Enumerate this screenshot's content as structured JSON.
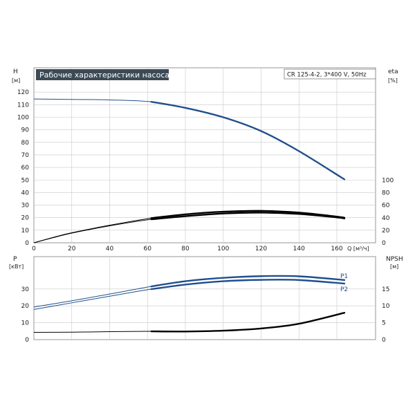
{
  "chart_data": [
    {
      "type": "line",
      "title": "Рабочие характеристики насоса",
      "subtitle": "CR 125-4-2, 3*400 V, 50Hz",
      "xlabel": "Q [м³/ч]",
      "ylabel": "H",
      "ylabel_unit": "[м]",
      "y2label": "eta",
      "y2label_unit": "[%]",
      "xlim": [
        0,
        165
      ],
      "ylim": [
        0,
        130
      ],
      "y2lim": [
        0,
        130
      ],
      "x_ticks": [
        "0",
        "20",
        "40",
        "60",
        "80",
        "100",
        "120",
        "140",
        "160"
      ],
      "y_ticks": [
        "0",
        "10",
        "20",
        "30",
        "40",
        "50",
        "60",
        "70",
        "80",
        "90",
        "100",
        "110",
        "120"
      ],
      "y2_ticks": [
        "0",
        "20",
        "40",
        "60",
        "80",
        "100"
      ],
      "grid": true,
      "series": [
        {
          "axis": "y",
          "color": "#1f4e8c",
          "x": [
            0,
            20,
            40,
            62,
            80,
            100,
            120,
            140,
            164
          ],
          "y": [
            114.5,
            114.2,
            113.8,
            112.3,
            107.5,
            100,
            89,
            73,
            50.5
          ]
        },
        {
          "axis": "y2",
          "color": "#000000",
          "x": [
            0,
            10,
            20,
            40,
            62,
            80,
            100,
            120,
            140,
            160,
            164
          ],
          "y": [
            0,
            8.5,
            16,
            28,
            39.4,
            45.4,
            49.6,
            51,
            48.2,
            41.8,
            40
          ]
        },
        {
          "axis": "y2",
          "color": "#000000",
          "x": [
            0,
            10,
            20,
            40,
            62,
            80,
            100,
            120,
            140,
            160,
            164
          ],
          "y": [
            0,
            8,
            15.5,
            27,
            37.5,
            42.5,
            46.8,
            48.2,
            46.1,
            40.6,
            38.8
          ]
        }
      ]
    },
    {
      "type": "line",
      "ylabel": "P",
      "ylabel_unit": "[кВт]",
      "y2label": "NPSH",
      "y2label_unit": "[м]",
      "xlim": [
        0,
        165
      ],
      "ylim": [
        0,
        50
      ],
      "y2lim": [
        0,
        25
      ],
      "y_ticks": [
        "0",
        "10",
        "20",
        "30"
      ],
      "y2_ticks": [
        "0",
        "5",
        "10",
        "15"
      ],
      "grid": true,
      "series": [
        {
          "name": "P1",
          "axis": "y",
          "color": "#1f4e8c",
          "x": [
            0,
            20,
            40,
            62,
            80,
            100,
            120,
            140,
            164
          ],
          "y": [
            19.3,
            23,
            27,
            31.5,
            34.6,
            36.6,
            37.6,
            37.5,
            35.3
          ]
        },
        {
          "name": "P2",
          "axis": "y",
          "color": "#1f4e8c",
          "x": [
            0,
            20,
            40,
            62,
            80,
            100,
            120,
            140,
            164
          ],
          "y": [
            17.9,
            21.8,
            25.7,
            29.9,
            32.6,
            34.6,
            35.4,
            35.3,
            33.2
          ]
        },
        {
          "axis": "y2",
          "color": "#000000",
          "x": [
            0,
            20,
            40,
            62,
            80,
            100,
            120,
            140,
            164
          ],
          "y": [
            2.15,
            2.2,
            2.35,
            2.45,
            2.4,
            2.65,
            3.3,
            4.7,
            7.95
          ]
        }
      ]
    }
  ]
}
